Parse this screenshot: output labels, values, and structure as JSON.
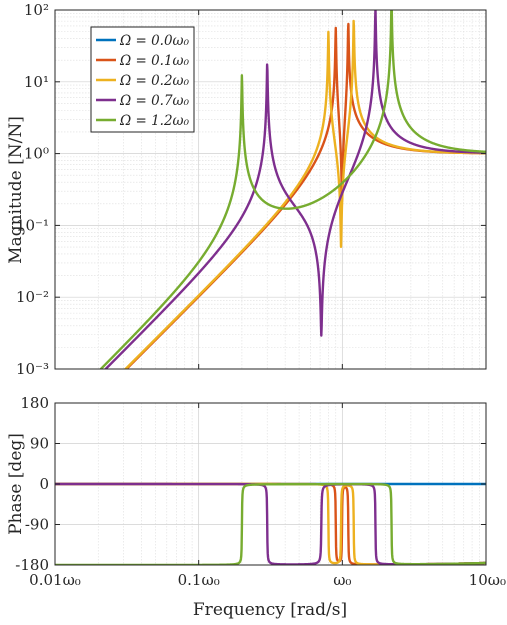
{
  "chart_data": [
    {
      "type": "line",
      "panel": "magnitude",
      "xscale": "log",
      "yscale": "log",
      "xlim": [
        0.01,
        10
      ],
      "ylim": [
        0.001,
        100
      ],
      "ylabel": "Magnitude [N/N]",
      "yticks": [
        {
          "value": 100,
          "label": "10²"
        },
        {
          "value": 10,
          "label": "10¹"
        },
        {
          "value": 1,
          "label": "10⁰"
        },
        {
          "value": 0.1,
          "label": "10⁻¹"
        },
        {
          "value": 0.01,
          "label": "10⁻²"
        },
        {
          "value": 0.001,
          "label": "10⁻³"
        }
      ],
      "grid": true,
      "legend_position": "top-left",
      "series": [
        {
          "name": "Ω = 0.0ω₀",
          "color": "#0072BD",
          "omega": 0.0
        },
        {
          "name": "Ω = 0.1ω₀",
          "color": "#D95319",
          "omega": 0.1
        },
        {
          "name": "Ω = 0.2ω₀",
          "color": "#EDB120",
          "omega": 0.2
        },
        {
          "name": "Ω = 0.7ω₀",
          "color": "#7E2F8E",
          "omega": 0.7
        },
        {
          "name": "Ω = 1.2ω₀",
          "color": "#77AC30",
          "omega": 1.2
        }
      ]
    },
    {
      "type": "line",
      "panel": "phase",
      "xscale": "log",
      "xlim": [
        0.01,
        10
      ],
      "ylim": [
        -180,
        180
      ],
      "ylabel": "Phase [deg]",
      "xlabel": "Frequency [rad/s]",
      "yticks": [
        180,
        90,
        0,
        -90,
        -180
      ],
      "xticks": [
        {
          "value": 0.01,
          "label": "0.01ω₀"
        },
        {
          "value": 0.1,
          "label": "0.1ω₀"
        },
        {
          "value": 1,
          "label": "ω₀"
        },
        {
          "value": 10,
          "label": "10ω₀"
        }
      ],
      "grid": true
    }
  ]
}
